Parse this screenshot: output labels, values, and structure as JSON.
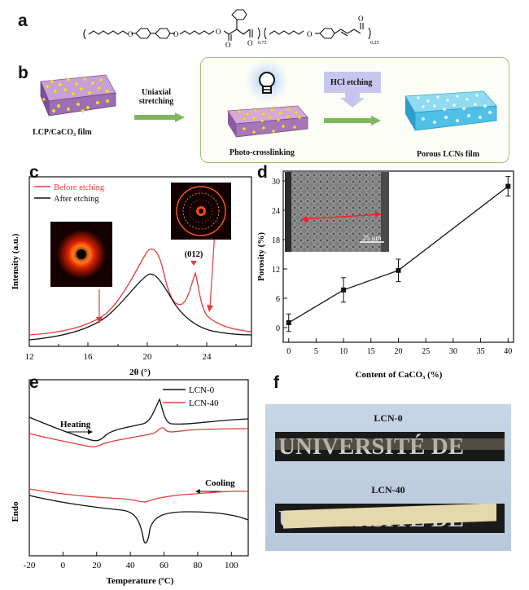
{
  "panels": {
    "a": "a",
    "b": "b",
    "c": "c",
    "d": "d",
    "e": "e",
    "f": "f"
  },
  "panel_a": {
    "subscripts": [
      "0.75",
      "0.25"
    ]
  },
  "panel_b": {
    "film_label": "LCP/CaCO₃ film",
    "step1_line1": "Uniaxial",
    "step1_line2": "stretching",
    "step2": "Photo-crosslinking",
    "step3": "HCl etching",
    "result": "Porous LCNs film"
  },
  "panel_c": {
    "legend": [
      "Before etching",
      "After etching"
    ],
    "series_colors": [
      "#e8393b",
      "#111111"
    ],
    "peak_label": "(012)",
    "ylabel": "Intensity (a.u.)",
    "xlabel": "2θ (°)",
    "xticks": [
      "12",
      "16",
      "20",
      "24"
    ]
  },
  "panel_d": {
    "ylabel": "Porosity (%)",
    "xlabel": "Content of CaCO₃ (%)",
    "xticks": [
      "0",
      "5",
      "10",
      "15",
      "20",
      "25",
      "30",
      "35",
      "40"
    ],
    "yticks": [
      "0",
      "6",
      "12",
      "18",
      "24",
      "30"
    ],
    "scale_bar": "25 μm"
  },
  "panel_e": {
    "legend": [
      "LCN-0",
      "LCN-40"
    ],
    "series_colors": [
      "#111111",
      "#e8393b"
    ],
    "heating": "Heating",
    "cooling": "Cooling",
    "ylabel": "Endo",
    "xlabel": "Temperature (ºC)",
    "xticks": [
      "-20",
      "0",
      "20",
      "40",
      "60",
      "80",
      "100"
    ]
  },
  "panel_f": {
    "label1": "LCN-0",
    "label2": "LCN-40",
    "text": "UNIVERSITÉ DE"
  },
  "chart_data": [
    {
      "type": "scatter",
      "title": "",
      "xlabel": "Content of CaCO₃ (%)",
      "ylabel": "Porosity (%)",
      "xlim": [
        -1,
        41
      ],
      "ylim": [
        -3,
        32
      ],
      "series": [
        {
          "x": [
            0,
            10,
            20,
            40
          ],
          "y": [
            1,
            7.7,
            11.7,
            28.9
          ],
          "err": [
            1.8,
            2.5,
            2.3,
            2.0
          ]
        }
      ]
    },
    {
      "type": "line",
      "title": "",
      "xlabel": "2θ (°)",
      "ylabel": "Intensity (a.u.)",
      "xlim": [
        12,
        27
      ],
      "series": [
        {
          "name": "Before etching",
          "x": [
            12,
            16,
            18,
            19.5,
            20.7,
            22,
            22.8,
            23.3,
            23.8,
            25,
            26.5
          ],
          "y": [
            0.12,
            0.18,
            0.28,
            0.42,
            0.62,
            0.38,
            0.32,
            0.48,
            0.22,
            0.08,
            0.05
          ]
        },
        {
          "name": "After etching",
          "x": [
            12,
            16,
            18,
            19.5,
            20.7,
            22,
            23.5,
            25,
            26.5
          ],
          "y": [
            0.05,
            0.1,
            0.2,
            0.32,
            0.43,
            0.25,
            0.1,
            0.04,
            0.02
          ]
        }
      ]
    },
    {
      "type": "line",
      "title": "",
      "xlabel": "Temperature (ºC)",
      "ylabel": "Endo",
      "xlim": [
        -20,
        110
      ],
      "series": [
        {
          "name": "LCN-0"
        },
        {
          "name": "LCN-40"
        }
      ]
    }
  ]
}
